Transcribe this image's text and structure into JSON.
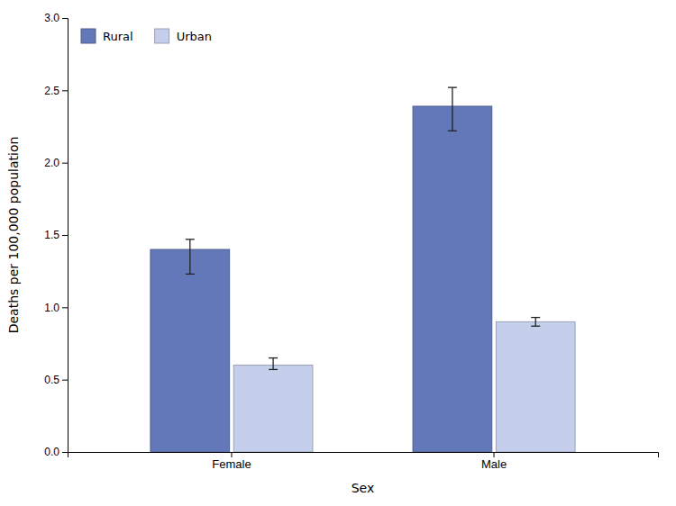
{
  "chart_data": {
    "type": "bar",
    "categories": [
      "Female",
      "Male"
    ],
    "series": [
      {
        "name": "Rural",
        "color": "#6278B8",
        "values": [
          1.4,
          2.39
        ],
        "errors_low": [
          0.17,
          0.17
        ],
        "errors_high": [
          0.07,
          0.13
        ]
      },
      {
        "name": "Urban",
        "color": "#C5CEEA",
        "values": [
          0.6,
          0.9
        ],
        "errors_low": [
          0.03,
          0.03
        ],
        "errors_high": [
          0.05,
          0.03
        ]
      }
    ],
    "xlabel": "Sex",
    "ylabel": "Deaths per 100,000 population",
    "ylim": [
      0.0,
      3.0
    ],
    "yticks": [
      {
        "value": 0.0,
        "label": "0.0"
      },
      0.5,
      {
        "value": 1.0,
        "label": "1.0"
      },
      1.5,
      {
        "value": 2.0,
        "label": "2.0"
      },
      2.5,
      {
        "value": 3.0,
        "label": "3.0"
      }
    ],
    "grid": false,
    "legend": "upper left"
  }
}
